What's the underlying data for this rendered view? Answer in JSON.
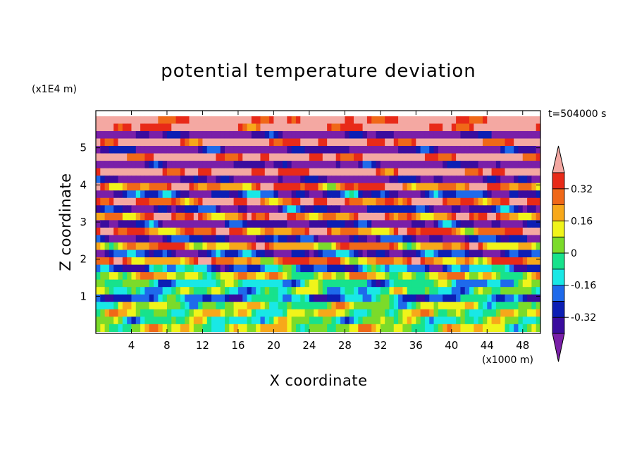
{
  "chart_data": {
    "type": "heatmap",
    "title": "potential temperature deviation",
    "xlabel": "X coordinate",
    "ylabel": "Z coordinate",
    "x_unit": "(x1000 m)",
    "y_unit": "(x1E4 m)",
    "time_label": "t=504000 s",
    "xlim": [
      0,
      50
    ],
    "ylim": [
      0,
      6
    ],
    "x_ticks": [
      4,
      8,
      12,
      16,
      20,
      24,
      28,
      32,
      36,
      40,
      44,
      48
    ],
    "y_ticks": [
      1,
      2,
      3,
      4,
      5
    ],
    "colorbar": {
      "levels": [
        -0.4,
        -0.32,
        -0.24,
        -0.16,
        -0.08,
        0,
        0.08,
        0.16,
        0.24,
        0.32,
        0.4
      ],
      "tick_labels": [
        "0.32",
        "0.16",
        "0",
        "-0.16",
        "-0.32"
      ],
      "tick_values": [
        0.32,
        0.16,
        0,
        -0.16,
        -0.32
      ],
      "colors_low_to_high": [
        "#7a1fa8",
        "#3a0c9e",
        "#0c1eb4",
        "#1e6aeb",
        "#19e8e6",
        "#17e28c",
        "#7bdb2a",
        "#f0f41a",
        "#f7a81a",
        "#f06818",
        "#e82a18",
        "#f4a8a2"
      ],
      "extend": "both"
    },
    "description_rows": [
      {
        "z": 5.75,
        "value": 0.45
      },
      {
        "z": 5.55,
        "value": 0.45
      },
      {
        "z": 5.35,
        "value": -0.45
      },
      {
        "z": 5.15,
        "value": 0.45
      },
      {
        "z": 4.95,
        "value": -0.42
      },
      {
        "z": 4.75,
        "value": 0.45
      },
      {
        "z": 4.55,
        "value": -0.45
      },
      {
        "z": 4.35,
        "value": 0.45
      },
      {
        "z": 4.15,
        "value": -0.45
      },
      {
        "z": 3.95,
        "value": 0.3
      },
      {
        "z": 3.75,
        "value": -0.3
      },
      {
        "z": 3.55,
        "value": 0.35
      },
      {
        "z": 3.35,
        "value": -0.35
      },
      {
        "z": 3.15,
        "value": 0.3
      },
      {
        "z": 2.95,
        "value": -0.38
      },
      {
        "z": 2.75,
        "value": 0.28
      },
      {
        "z": 2.55,
        "value": -0.35
      },
      {
        "z": 2.35,
        "value": 0.22
      },
      {
        "z": 2.15,
        "value": -0.3
      },
      {
        "z": 1.95,
        "value": 0.25
      },
      {
        "z": 1.75,
        "value": -0.2
      },
      {
        "z": 1.55,
        "value": 0.12
      },
      {
        "z": 1.35,
        "value": -0.08
      },
      {
        "z": 1.15,
        "value": -0.05
      },
      {
        "z": 0.95,
        "value": -0.18
      },
      {
        "z": 0.75,
        "value": 0.03
      },
      {
        "z": 0.55,
        "value": 0.05
      },
      {
        "z": 0.35,
        "value": -0.02
      },
      {
        "z": 0.15,
        "value": 0.08
      }
    ]
  }
}
